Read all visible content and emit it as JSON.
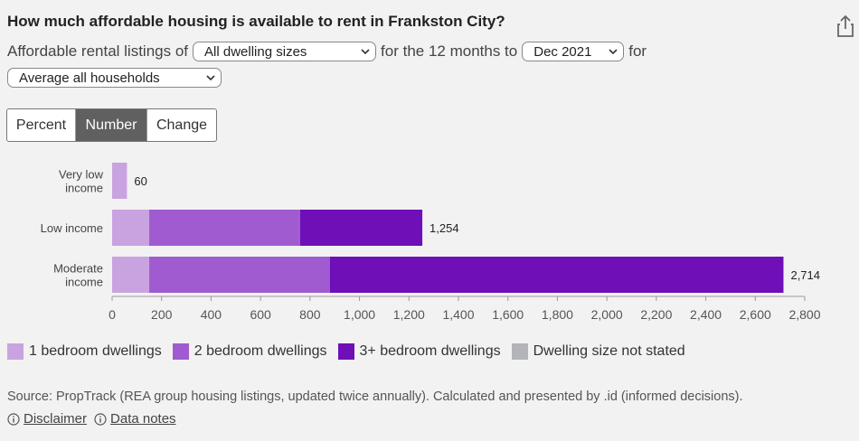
{
  "title": "How much affordable housing is available to rent in Frankston City?",
  "controls": {
    "prefix": "Affordable rental listings of",
    "dwelling_select": "All dwelling sizes",
    "mid": "for the 12 months to",
    "period_select": "Dec 2021",
    "suffix": "for",
    "household_select": "Average all households"
  },
  "tabs": [
    "Percent",
    "Number",
    "Change"
  ],
  "active_tab": "Number",
  "colors": {
    "one_bed": "#c9a3e0",
    "two_bed": "#a05bd0",
    "three_plus": "#6e0fb8",
    "not_stated": "#b2b4ba",
    "tab_active": "#606060"
  },
  "chart_data": {
    "type": "bar",
    "orientation": "horizontal",
    "stacked": true,
    "categories": [
      "Very low\nincome",
      "Low income",
      "Moderate\nincome"
    ],
    "series": [
      {
        "name": "1 bedroom dwellings",
        "values": [
          60,
          150,
          150
        ]
      },
      {
        "name": "2 bedroom dwellings",
        "values": [
          0,
          610,
          730
        ]
      },
      {
        "name": "3+ bedroom dwellings",
        "values": [
          0,
          494,
          1834
        ]
      },
      {
        "name": "Dwelling size not stated",
        "values": [
          0,
          0,
          0
        ]
      }
    ],
    "totals": [
      "60",
      "1,254",
      "2,714"
    ],
    "xlim": [
      0,
      2800
    ],
    "xticks": [
      "0",
      "200",
      "400",
      "600",
      "800",
      "1,000",
      "1,200",
      "1,400",
      "1,600",
      "1,800",
      "2,000",
      "2,200",
      "2,400",
      "2,600",
      "2,800"
    ],
    "legend_position": "bottom-left"
  },
  "source": "Source: PropTrack (REA group housing listings, updated twice annually). Calculated and presented by .id (informed decisions).",
  "links": {
    "disclaimer": "Disclaimer",
    "data_notes": "Data notes"
  }
}
